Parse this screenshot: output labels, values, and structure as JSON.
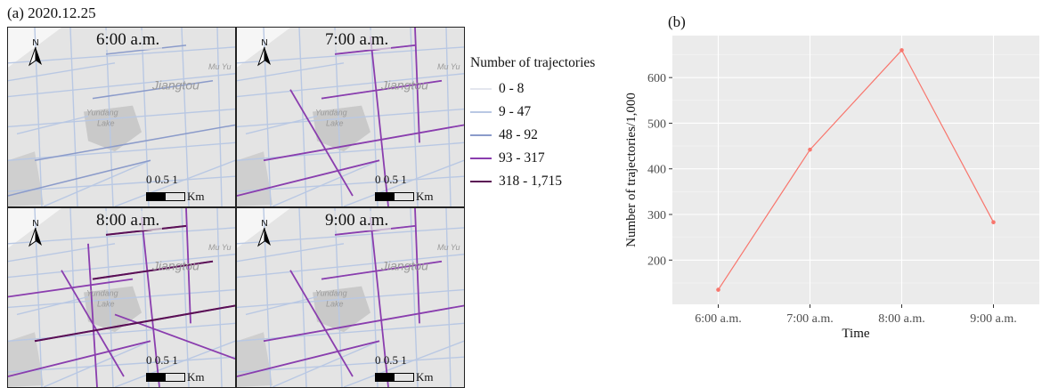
{
  "panel_a": {
    "label": "(a) 2020.12.25",
    "maps": [
      {
        "time": "6:00 a.m.",
        "level": 1
      },
      {
        "time": "7:00 a.m.",
        "level": 2
      },
      {
        "time": "8:00 a.m.",
        "level": 3
      },
      {
        "time": "9:00 a.m.",
        "level": 2
      }
    ],
    "map_labels": {
      "city": "Jiangtou",
      "lake_1": "Yundang",
      "lake_2": "Lake",
      "town": "Mu Yu"
    },
    "north_label": "N",
    "scalebar": {
      "ticks": "0  0.5  1",
      "unit": "Km"
    }
  },
  "legend": {
    "title": "Number of trajectories",
    "items": [
      {
        "label": "0 - 8",
        "color": "#f0f2f6"
      },
      {
        "label": "9 - 47",
        "color": "#b9c8e3"
      },
      {
        "label": "48 - 92",
        "color": "#8b9bca"
      },
      {
        "label": "93 - 317",
        "color": "#8a3dae"
      },
      {
        "label": "318 - 1,715",
        "color": "#5a0f54"
      }
    ]
  },
  "panel_b_label": "(b)",
  "chart_data": {
    "type": "line",
    "categories": [
      "6:00 a.m.",
      "7:00 a.m.",
      "8:00 a.m.",
      "9:00 a.m."
    ],
    "series": [
      {
        "values": [
          135,
          442,
          660,
          283
        ],
        "color": "#f8766d"
      }
    ],
    "xlabel": "Time",
    "ylabel": "Number of trajectories/1,000",
    "yticks": [
      200,
      300,
      400,
      500,
      600
    ],
    "ylim": [
      103,
      692
    ],
    "grid": true,
    "background": "#ebebeb"
  }
}
